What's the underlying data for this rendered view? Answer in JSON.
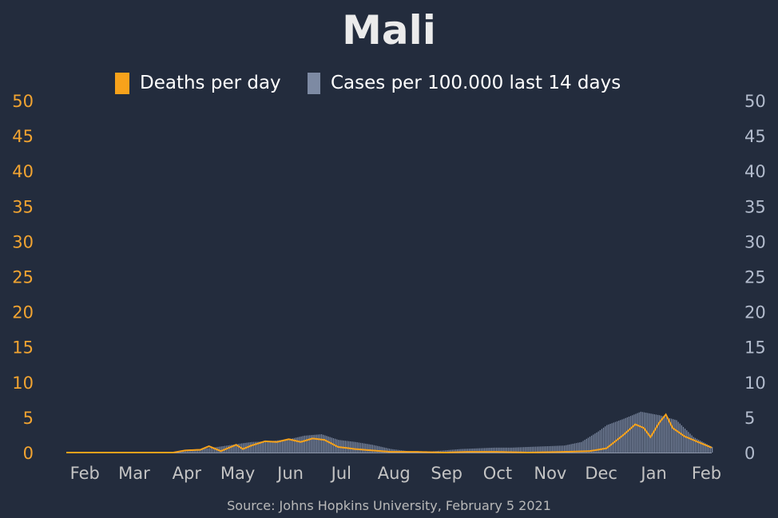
{
  "chart_data": {
    "type": "bar",
    "title": "Mali",
    "source": "Source: Johns Hopkins University, February 5 2021",
    "legend": {
      "placement": "top-center",
      "entries": [
        {
          "label": "Deaths per day",
          "color": "#f7a21b"
        },
        {
          "label": "Cases per 100.000 last 14 days",
          "color": "#7d8aa3"
        }
      ]
    },
    "x_ticks": [
      "Feb",
      "Mar",
      "Apr",
      "May",
      "Jun",
      "Jul",
      "Aug",
      "Sep",
      "Oct",
      "Nov",
      "Dec",
      "Jan",
      "Feb"
    ],
    "y_left": {
      "min": 0,
      "max": 50,
      "ticks": [
        "0",
        "5",
        "10",
        "15",
        "20",
        "25",
        "30",
        "35",
        "40",
        "45",
        "50"
      ],
      "color": "#f2a431"
    },
    "y_right": {
      "min": 0,
      "max": 50,
      "ticks": [
        "0",
        "5",
        "10",
        "15",
        "20",
        "25",
        "30",
        "35",
        "40",
        "45",
        "50"
      ],
      "color": "#b3bccd"
    },
    "series": [
      {
        "name": "Cases per 100.000 last 14 days",
        "kind": "bar",
        "color": "#7d8aa3",
        "points": [
          [
            "2020-01-22",
            0
          ],
          [
            "2020-03-20",
            0
          ],
          [
            "2020-03-25",
            0.1
          ],
          [
            "2020-04-01",
            0.3
          ],
          [
            "2020-04-10",
            0.5
          ],
          [
            "2020-04-20",
            0.8
          ],
          [
            "2020-05-01",
            1.2
          ],
          [
            "2020-05-10",
            1.5
          ],
          [
            "2020-05-20",
            1.6
          ],
          [
            "2020-06-01",
            1.9
          ],
          [
            "2020-06-10",
            2.4
          ],
          [
            "2020-06-20",
            2.6
          ],
          [
            "2020-06-30",
            1.8
          ],
          [
            "2020-07-10",
            1.5
          ],
          [
            "2020-07-20",
            1.1
          ],
          [
            "2020-07-31",
            0.5
          ],
          [
            "2020-08-10",
            0.2
          ],
          [
            "2020-08-20",
            0.1
          ],
          [
            "2020-08-31",
            0.3
          ],
          [
            "2020-09-10",
            0.5
          ],
          [
            "2020-09-20",
            0.6
          ],
          [
            "2020-09-30",
            0.7
          ],
          [
            "2020-10-10",
            0.7
          ],
          [
            "2020-10-20",
            0.8
          ],
          [
            "2020-10-31",
            0.9
          ],
          [
            "2020-11-10",
            1.0
          ],
          [
            "2020-11-20",
            1.5
          ],
          [
            "2020-11-30",
            3.0
          ],
          [
            "2020-12-05",
            3.9
          ],
          [
            "2020-12-15",
            4.8
          ],
          [
            "2020-12-25",
            5.8
          ],
          [
            "2021-01-05",
            5.3
          ],
          [
            "2021-01-15",
            4.6
          ],
          [
            "2021-01-25",
            2.2
          ],
          [
            "2021-02-05",
            0.8
          ]
        ]
      },
      {
        "name": "Deaths per day",
        "kind": "line",
        "color": "#f7a21b",
        "points": [
          [
            "2020-01-22",
            0
          ],
          [
            "2020-03-25",
            0
          ],
          [
            "2020-04-01",
            0.3
          ],
          [
            "2020-04-10",
            0.4
          ],
          [
            "2020-04-15",
            0.9
          ],
          [
            "2020-04-22",
            0.2
          ],
          [
            "2020-05-01",
            1.1
          ],
          [
            "2020-05-05",
            0.5
          ],
          [
            "2020-05-10",
            1.0
          ],
          [
            "2020-05-18",
            1.6
          ],
          [
            "2020-05-25",
            1.5
          ],
          [
            "2020-06-01",
            1.9
          ],
          [
            "2020-06-08",
            1.5
          ],
          [
            "2020-06-15",
            2.0
          ],
          [
            "2020-06-22",
            1.8
          ],
          [
            "2020-06-30",
            0.8
          ],
          [
            "2020-07-10",
            0.5
          ],
          [
            "2020-07-20",
            0.3
          ],
          [
            "2020-07-31",
            0.1
          ],
          [
            "2020-08-15",
            0.1
          ],
          [
            "2020-09-01",
            0
          ],
          [
            "2020-09-15",
            0.1
          ],
          [
            "2020-10-01",
            0.1
          ],
          [
            "2020-10-20",
            0
          ],
          [
            "2020-11-10",
            0.1
          ],
          [
            "2020-11-25",
            0.2
          ],
          [
            "2020-12-05",
            0.6
          ],
          [
            "2020-12-15",
            2.5
          ],
          [
            "2020-12-22",
            4.0
          ],
          [
            "2020-12-27",
            3.5
          ],
          [
            "2020-12-31",
            2.2
          ],
          [
            "2021-01-05",
            4.2
          ],
          [
            "2021-01-09",
            5.4
          ],
          [
            "2021-01-13",
            3.5
          ],
          [
            "2021-01-20",
            2.3
          ],
          [
            "2021-01-27",
            1.6
          ],
          [
            "2021-02-05",
            0.7
          ]
        ]
      }
    ]
  }
}
